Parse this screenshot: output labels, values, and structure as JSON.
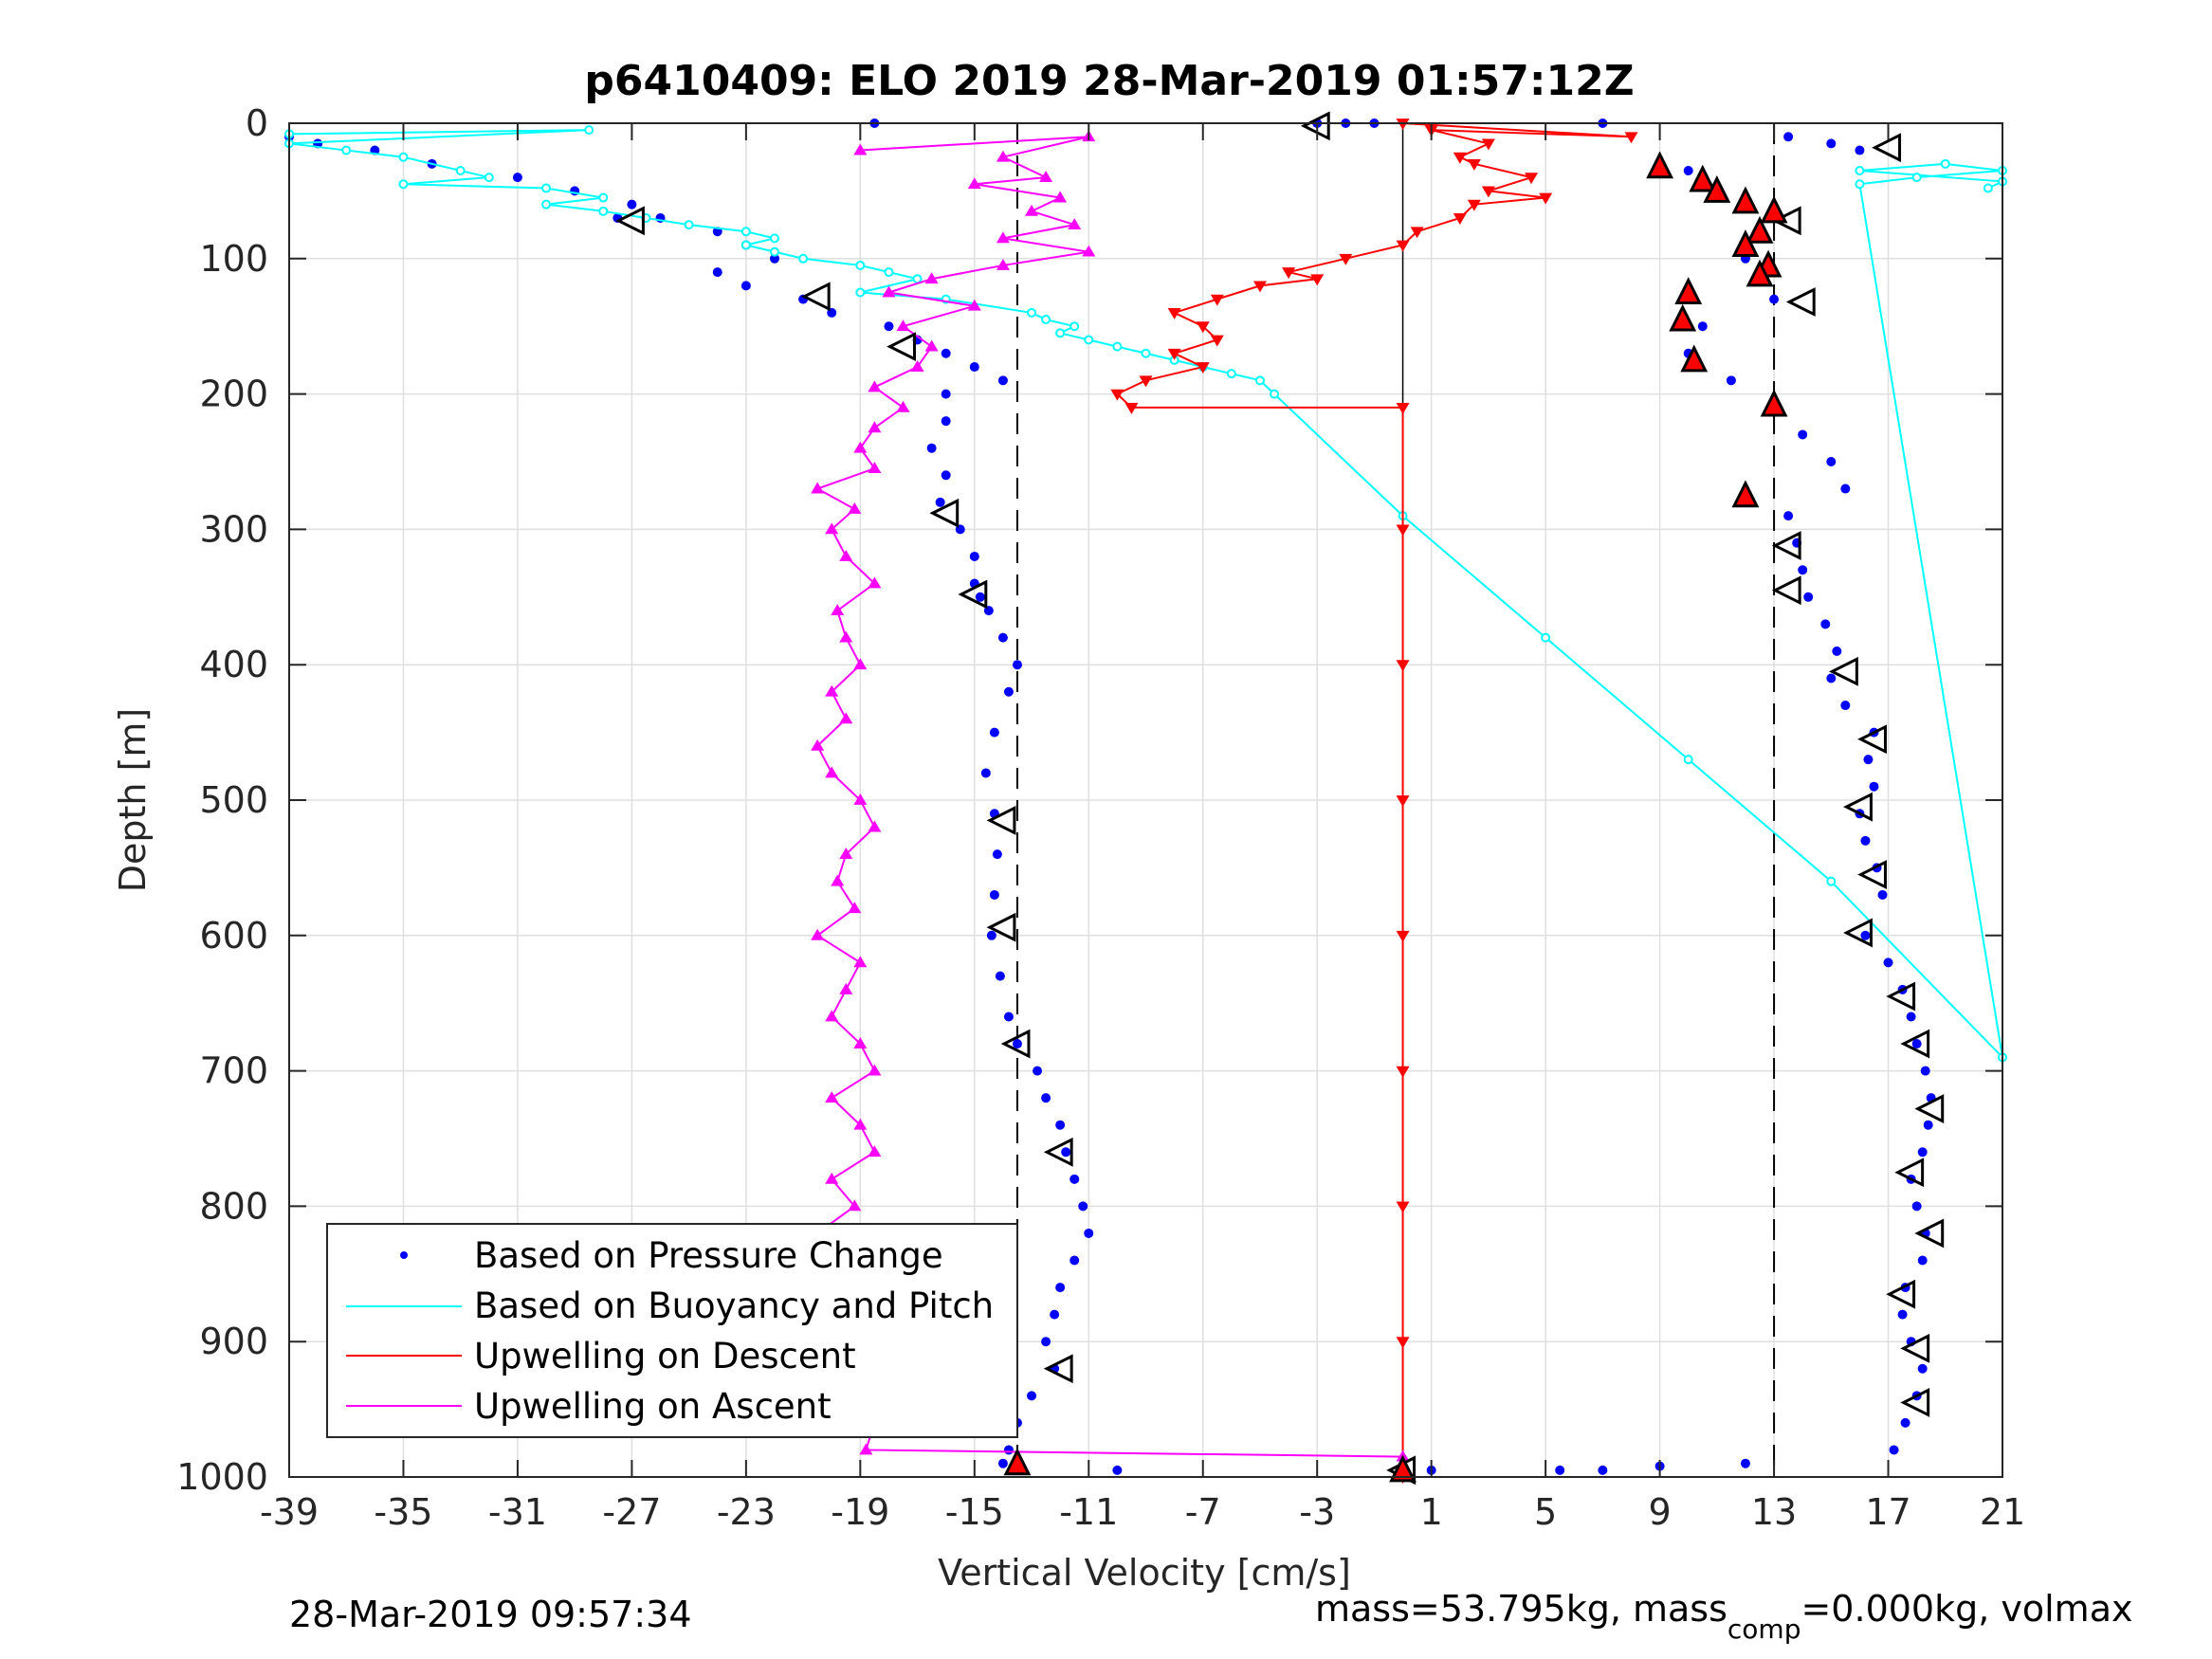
{
  "chart_data": {
    "type": "scatter",
    "title": "p6410409: ELO 2019 28-Mar-2019 01:57:12Z",
    "xlabel": "Vertical Velocity [cm/s]",
    "ylabel": "Depth [m]",
    "xlim": [
      -39,
      21
    ],
    "ylim": [
      0,
      1000
    ],
    "y_reversed": true,
    "grid": true,
    "xticks": [
      -39,
      -35,
      -31,
      -27,
      -23,
      -19,
      -15,
      -11,
      -7,
      -3,
      1,
      5,
      9,
      13,
      17,
      21
    ],
    "yticks": [
      0,
      100,
      200,
      300,
      400,
      500,
      600,
      700,
      800,
      900,
      1000
    ],
    "reference_lines": {
      "dashed_x": [
        -13.5,
        13
      ],
      "solid_x": [
        0
      ]
    },
    "legend_position": "bottom-left",
    "legend": [
      "Based on Pressure Change",
      "Based on Buoyancy and Pitch",
      "Upwelling on Descent",
      "Upwelling on Ascent"
    ],
    "series": [
      {
        "name": "Based on Pressure Change",
        "color": "#0000ff",
        "marker": "dot",
        "points": [
          [
            -39,
            10
          ],
          [
            -38,
            15
          ],
          [
            -36,
            20
          ],
          [
            -34,
            30
          ],
          [
            -31,
            40
          ],
          [
            -29,
            50
          ],
          [
            -27,
            60
          ],
          [
            -27.5,
            70
          ],
          [
            -26,
            70
          ],
          [
            -24,
            80
          ],
          [
            -23,
            90
          ],
          [
            -22,
            100
          ],
          [
            -24,
            110
          ],
          [
            -23,
            120
          ],
          [
            -21,
            130
          ],
          [
            -20,
            140
          ],
          [
            -18,
            150
          ],
          [
            -17,
            160
          ],
          [
            -16,
            170
          ],
          [
            -15,
            180
          ],
          [
            -14,
            190
          ],
          [
            -16,
            200
          ],
          [
            -16,
            220
          ],
          [
            -16.5,
            240
          ],
          [
            -16,
            260
          ],
          [
            -16.2,
            280
          ],
          [
            -15.5,
            300
          ],
          [
            -15,
            320
          ],
          [
            -15,
            340
          ],
          [
            -14.8,
            350
          ],
          [
            -14.5,
            360
          ],
          [
            -14,
            380
          ],
          [
            -13.5,
            400
          ],
          [
            -13.8,
            420
          ],
          [
            -14.3,
            450
          ],
          [
            -14.6,
            480
          ],
          [
            -14.3,
            510
          ],
          [
            -14.2,
            540
          ],
          [
            -14.3,
            570
          ],
          [
            -14.4,
            600
          ],
          [
            -14.1,
            630
          ],
          [
            -13.8,
            660
          ],
          [
            -13.5,
            680
          ],
          [
            -12.8,
            700
          ],
          [
            -12.5,
            720
          ],
          [
            -12,
            740
          ],
          [
            -11.8,
            760
          ],
          [
            -11.5,
            780
          ],
          [
            -11.2,
            800
          ],
          [
            -11,
            820
          ],
          [
            -11.5,
            840
          ],
          [
            -12,
            860
          ],
          [
            -12.2,
            880
          ],
          [
            -12.5,
            900
          ],
          [
            -12.2,
            920
          ],
          [
            -13,
            940
          ],
          [
            -13.5,
            960
          ],
          [
            -13.8,
            980
          ],
          [
            -14,
            990
          ],
          [
            10,
            35
          ],
          [
            11,
            50
          ],
          [
            12,
            60
          ],
          [
            12.5,
            80
          ],
          [
            12,
            100
          ],
          [
            12.5,
            110
          ],
          [
            13,
            130
          ],
          [
            10.5,
            150
          ],
          [
            10,
            170
          ],
          [
            11.5,
            190
          ],
          [
            13,
            210
          ],
          [
            14,
            230
          ],
          [
            15,
            250
          ],
          [
            15.5,
            270
          ],
          [
            13.5,
            290
          ],
          [
            13.8,
            310
          ],
          [
            14,
            330
          ],
          [
            14.2,
            350
          ],
          [
            14.8,
            370
          ],
          [
            15.2,
            390
          ],
          [
            15,
            410
          ],
          [
            15.5,
            430
          ],
          [
            16.5,
            450
          ],
          [
            16.3,
            470
          ],
          [
            16.5,
            490
          ],
          [
            16,
            510
          ],
          [
            16.2,
            530
          ],
          [
            16.6,
            550
          ],
          [
            16.8,
            570
          ],
          [
            16.2,
            600
          ],
          [
            17,
            620
          ],
          [
            17.5,
            640
          ],
          [
            17.8,
            660
          ],
          [
            18,
            680
          ],
          [
            18.3,
            700
          ],
          [
            18.5,
            720
          ],
          [
            18.4,
            740
          ],
          [
            18.2,
            760
          ],
          [
            17.8,
            780
          ],
          [
            18,
            800
          ],
          [
            18.3,
            820
          ],
          [
            18.2,
            840
          ],
          [
            17.6,
            860
          ],
          [
            17.5,
            880
          ],
          [
            17.8,
            900
          ],
          [
            18.2,
            920
          ],
          [
            18,
            940
          ],
          [
            17.6,
            960
          ],
          [
            17.2,
            980
          ],
          [
            13.5,
            10
          ],
          [
            15,
            15
          ],
          [
            16,
            20
          ],
          [
            -3,
            0
          ],
          [
            -2,
            0
          ],
          [
            -1,
            0
          ],
          [
            0,
            995
          ],
          [
            1,
            995
          ],
          [
            5.5,
            995
          ],
          [
            7,
            995
          ],
          [
            9,
            992
          ],
          [
            12,
            990
          ],
          [
            -18.5,
            0
          ],
          [
            -10,
            995
          ],
          [
            7,
            0
          ]
        ]
      },
      {
        "name": "Based on Buoyancy and Pitch",
        "color": "#00ffff",
        "marker": "circle",
        "points": [
          [
            -39,
            8
          ],
          [
            -28.5,
            5
          ],
          [
            -39,
            15
          ],
          [
            -37,
            20
          ],
          [
            -35,
            25
          ],
          [
            -33,
            35
          ],
          [
            -32,
            40
          ],
          [
            -35,
            45
          ],
          [
            -30,
            48
          ],
          [
            -28,
            55
          ],
          [
            -30,
            60
          ],
          [
            -28,
            65
          ],
          [
            -26.5,
            70
          ],
          [
            -25,
            75
          ],
          [
            -23,
            80
          ],
          [
            -22,
            85
          ],
          [
            -23,
            90
          ],
          [
            -22,
            95
          ],
          [
            -21,
            100
          ],
          [
            -19,
            105
          ],
          [
            -18,
            110
          ],
          [
            -17,
            115
          ],
          [
            -19,
            125
          ],
          [
            -16,
            130
          ],
          [
            -13,
            140
          ],
          [
            -12.5,
            145
          ],
          [
            -11.5,
            150
          ],
          [
            -12,
            155
          ],
          [
            -11,
            160
          ],
          [
            -10,
            165
          ],
          [
            -9,
            170
          ],
          [
            -8,
            175
          ],
          [
            -7,
            180
          ],
          [
            -6,
            185
          ],
          [
            -5,
            190
          ],
          [
            -4.5,
            200
          ],
          [
            0,
            290
          ],
          [
            5,
            380
          ],
          [
            10,
            470
          ],
          [
            15,
            560
          ],
          [
            21,
            690
          ],
          [
            16,
            45
          ],
          [
            18,
            40
          ],
          [
            21,
            35
          ],
          [
            19,
            30
          ],
          [
            16,
            35
          ],
          [
            21,
            43
          ],
          [
            20.5,
            48
          ]
        ]
      },
      {
        "name": "Upwelling on Descent",
        "color": "#ff0000",
        "marker": "triangle-down",
        "points": [
          [
            0,
            0
          ],
          [
            8,
            10
          ],
          [
            1,
            5
          ],
          [
            3,
            15
          ],
          [
            2,
            25
          ],
          [
            2.5,
            30
          ],
          [
            4.5,
            40
          ],
          [
            3,
            50
          ],
          [
            5,
            55
          ],
          [
            2.5,
            60
          ],
          [
            2,
            70
          ],
          [
            0.5,
            80
          ],
          [
            0,
            90
          ],
          [
            -2,
            100
          ],
          [
            -4,
            110
          ],
          [
            -3,
            115
          ],
          [
            -5,
            120
          ],
          [
            -6.5,
            130
          ],
          [
            -8,
            140
          ],
          [
            -7,
            150
          ],
          [
            -6.5,
            160
          ],
          [
            -8,
            170
          ],
          [
            -7,
            180
          ],
          [
            -9,
            190
          ],
          [
            -10,
            200
          ],
          [
            -9.5,
            210
          ],
          [
            0,
            210
          ],
          [
            0,
            300
          ],
          [
            0,
            400
          ],
          [
            0,
            500
          ],
          [
            0,
            600
          ],
          [
            0,
            700
          ],
          [
            0,
            800
          ],
          [
            0,
            900
          ],
          [
            0,
            1000
          ]
        ]
      },
      {
        "name": "Upwelling on Ascent",
        "color": "#ff00ff",
        "marker": "triangle-up",
        "points": [
          [
            -19,
            20
          ],
          [
            -11,
            10
          ],
          [
            -14,
            25
          ],
          [
            -12.5,
            40
          ],
          [
            -15,
            45
          ],
          [
            -12,
            55
          ],
          [
            -13,
            65
          ],
          [
            -11.5,
            75
          ],
          [
            -14,
            85
          ],
          [
            -11,
            95
          ],
          [
            -14,
            105
          ],
          [
            -16.5,
            115
          ],
          [
            -18,
            125
          ],
          [
            -15,
            135
          ],
          [
            -17.5,
            150
          ],
          [
            -16.5,
            165
          ],
          [
            -17,
            180
          ],
          [
            -18.5,
            195
          ],
          [
            -17.5,
            210
          ],
          [
            -18.5,
            225
          ],
          [
            -19,
            240
          ],
          [
            -18.5,
            255
          ],
          [
            -20.5,
            270
          ],
          [
            -19.2,
            285
          ],
          [
            -20,
            300
          ],
          [
            -19.5,
            320
          ],
          [
            -18.5,
            340
          ],
          [
            -19.8,
            360
          ],
          [
            -19.5,
            380
          ],
          [
            -19,
            400
          ],
          [
            -20,
            420
          ],
          [
            -19.5,
            440
          ],
          [
            -20.5,
            460
          ],
          [
            -20,
            480
          ],
          [
            -19,
            500
          ],
          [
            -18.5,
            520
          ],
          [
            -19.5,
            540
          ],
          [
            -19.8,
            560
          ],
          [
            -19.2,
            580
          ],
          [
            -20.5,
            600
          ],
          [
            -19,
            620
          ],
          [
            -19.5,
            640
          ],
          [
            -20,
            660
          ],
          [
            -19,
            680
          ],
          [
            -18.5,
            700
          ],
          [
            -20,
            720
          ],
          [
            -19,
            740
          ],
          [
            -18.5,
            760
          ],
          [
            -20,
            780
          ],
          [
            -19.2,
            800
          ],
          [
            -20.5,
            820
          ],
          [
            -19,
            840
          ],
          [
            -20,
            860
          ],
          [
            -19.5,
            880
          ],
          [
            -20,
            900
          ],
          [
            -19.5,
            920
          ],
          [
            -19,
            940
          ],
          [
            -18.5,
            960
          ],
          [
            -18.8,
            980
          ],
          [
            0,
            985
          ]
        ]
      }
    ],
    "overlay_markers": {
      "open_triangles": [
        [
          -3,
          2
        ],
        [
          17,
          18
        ],
        [
          -27,
          72
        ],
        [
          13.5,
          72
        ],
        [
          -20.5,
          128
        ],
        [
          14,
          132
        ],
        [
          -17.5,
          165
        ],
        [
          -16,
          288
        ],
        [
          13.5,
          312
        ],
        [
          13.5,
          345
        ],
        [
          -15,
          348
        ],
        [
          15.5,
          405
        ],
        [
          16.5,
          455
        ],
        [
          16,
          505
        ],
        [
          -14,
          515
        ],
        [
          16.5,
          555
        ],
        [
          -14,
          594
        ],
        [
          16,
          598
        ],
        [
          17.5,
          645
        ],
        [
          18,
          680
        ],
        [
          -13.5,
          680
        ],
        [
          18.5,
          728
        ],
        [
          -12,
          760
        ],
        [
          17.8,
          775
        ],
        [
          18.5,
          820
        ],
        [
          17.5,
          865
        ],
        [
          18,
          905
        ],
        [
          -12,
          920
        ],
        [
          18,
          945
        ],
        [
          0,
          995
        ]
      ],
      "filled_red_triangles": [
        [
          9,
          32
        ],
        [
          10.5,
          42
        ],
        [
          11,
          50
        ],
        [
          12,
          58
        ],
        [
          13,
          65
        ],
        [
          12.5,
          80
        ],
        [
          12,
          90
        ],
        [
          12.8,
          105
        ],
        [
          10,
          125
        ],
        [
          12.5,
          112
        ],
        [
          9.8,
          145
        ],
        [
          10.2,
          175
        ],
        [
          13,
          208
        ],
        [
          12,
          275
        ],
        [
          -13.5,
          990
        ],
        [
          0,
          995
        ]
      ]
    },
    "footer_left": "28-Mar-2019 09:57:34",
    "footer_right": {
      "part1": "mass=53.795kg, mass",
      "subscript": "comp",
      "part2": "=0.000kg, volmax"
    }
  }
}
